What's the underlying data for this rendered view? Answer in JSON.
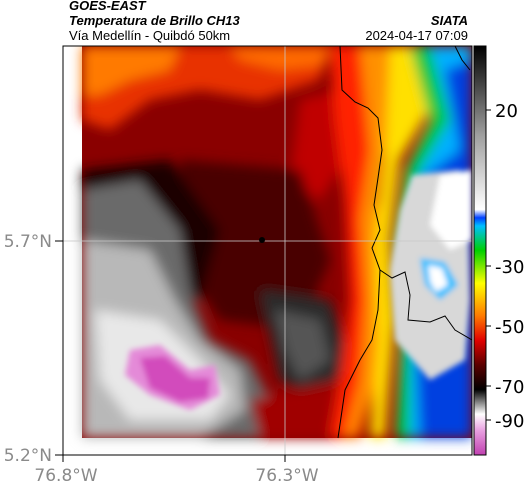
{
  "header": {
    "satellite": "GOES-EAST",
    "product": "Temperatura de Brillo CH13",
    "region": "Vía Medellín - Quibdó 50km",
    "agency": "SIATA",
    "timestamp": "2024-04-17 07:09"
  },
  "axes": {
    "lat_ticks": [
      "5.7°N",
      "5.2°N"
    ],
    "lon_ticks": [
      "76.8°W",
      "76.3°W"
    ],
    "gridlines": true
  },
  "colorbar": {
    "ticks": [
      "20",
      "-30",
      "-50",
      "-70",
      "-90"
    ],
    "range": [
      -95,
      35
    ],
    "colors": [
      "#d84ac0",
      "#ffffff",
      "#000000",
      "#e00000",
      "#ff7a00",
      "#ffff00",
      "#00d000",
      "#00c0ff",
      "#0040ff",
      "#505050",
      "#b0b0b0",
      "#000000"
    ]
  },
  "map": {
    "marker": "city-point",
    "colors": {
      "cold_pink": "#d050b8",
      "dark": "#150000",
      "red": "#d80808",
      "orange": "#ff8000",
      "yellow": "#ffe000",
      "green": "#00c840",
      "blue": "#0048e0",
      "grey": "#c8c8c8"
    }
  }
}
